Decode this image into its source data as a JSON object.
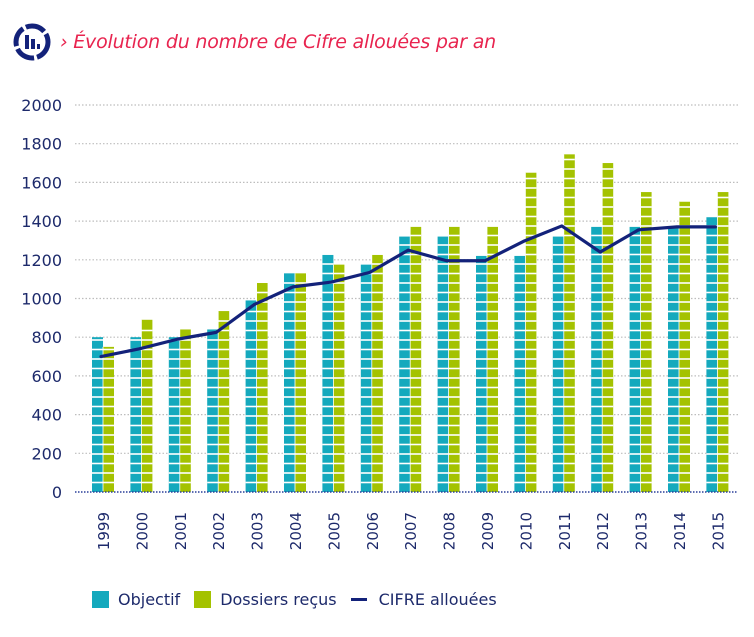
{
  "header": {
    "icon": "bar-chart-circle-icon",
    "title": "› Évolution du nombre de Cifre allouées par an"
  },
  "colors": {
    "objectif": "#14a9bd",
    "dossiers": "#a4c200",
    "line": "#13227a",
    "axis_text": "#1d2a6b",
    "title": "#e8244f",
    "grid": "#bdbdbd"
  },
  "legend": [
    {
      "label": "Objectif",
      "type": "box",
      "color_key": "objectif"
    },
    {
      "label": "Dossiers reçus",
      "type": "box",
      "color_key": "dossiers"
    },
    {
      "label": "CIFRE allouées",
      "type": "line",
      "color_key": "line"
    }
  ],
  "chart_data": {
    "type": "bar",
    "title": "Évolution du nombre de Cifre allouées par an",
    "xlabel": "",
    "ylabel": "",
    "ylim": [
      0,
      2000
    ],
    "yticks": [
      "0",
      "200",
      "400",
      "600",
      "800",
      "1000",
      "1200",
      "1400",
      "1600",
      "1800",
      "2000"
    ],
    "grid": true,
    "legend_position": "bottom",
    "categories": [
      "1999",
      "2000",
      "2001",
      "2002",
      "2003",
      "2004",
      "2005",
      "2006",
      "2007",
      "2008",
      "2009",
      "2010",
      "2011",
      "2012",
      "2013",
      "2014",
      "2015"
    ],
    "series": [
      {
        "name": "Objectif",
        "type": "bar",
        "values": [
          800,
          800,
          800,
          840,
          990,
          1130,
          1225,
          1175,
          1320,
          1320,
          1220,
          1220,
          1320,
          1370,
          1370,
          1370,
          1420
        ]
      },
      {
        "name": "Dossiers reçus",
        "type": "bar",
        "values": [
          750,
          890,
          840,
          935,
          1080,
          1130,
          1175,
          1225,
          1370,
          1370,
          1370,
          1650,
          1745,
          1700,
          1550,
          1500,
          1550
        ]
      },
      {
        "name": "CIFRE allouées",
        "type": "line",
        "values": [
          700,
          740,
          790,
          825,
          970,
          1060,
          1085,
          1135,
          1250,
          1195,
          1195,
          1295,
          1375,
          1240,
          1355,
          1370,
          1370
        ]
      }
    ]
  }
}
